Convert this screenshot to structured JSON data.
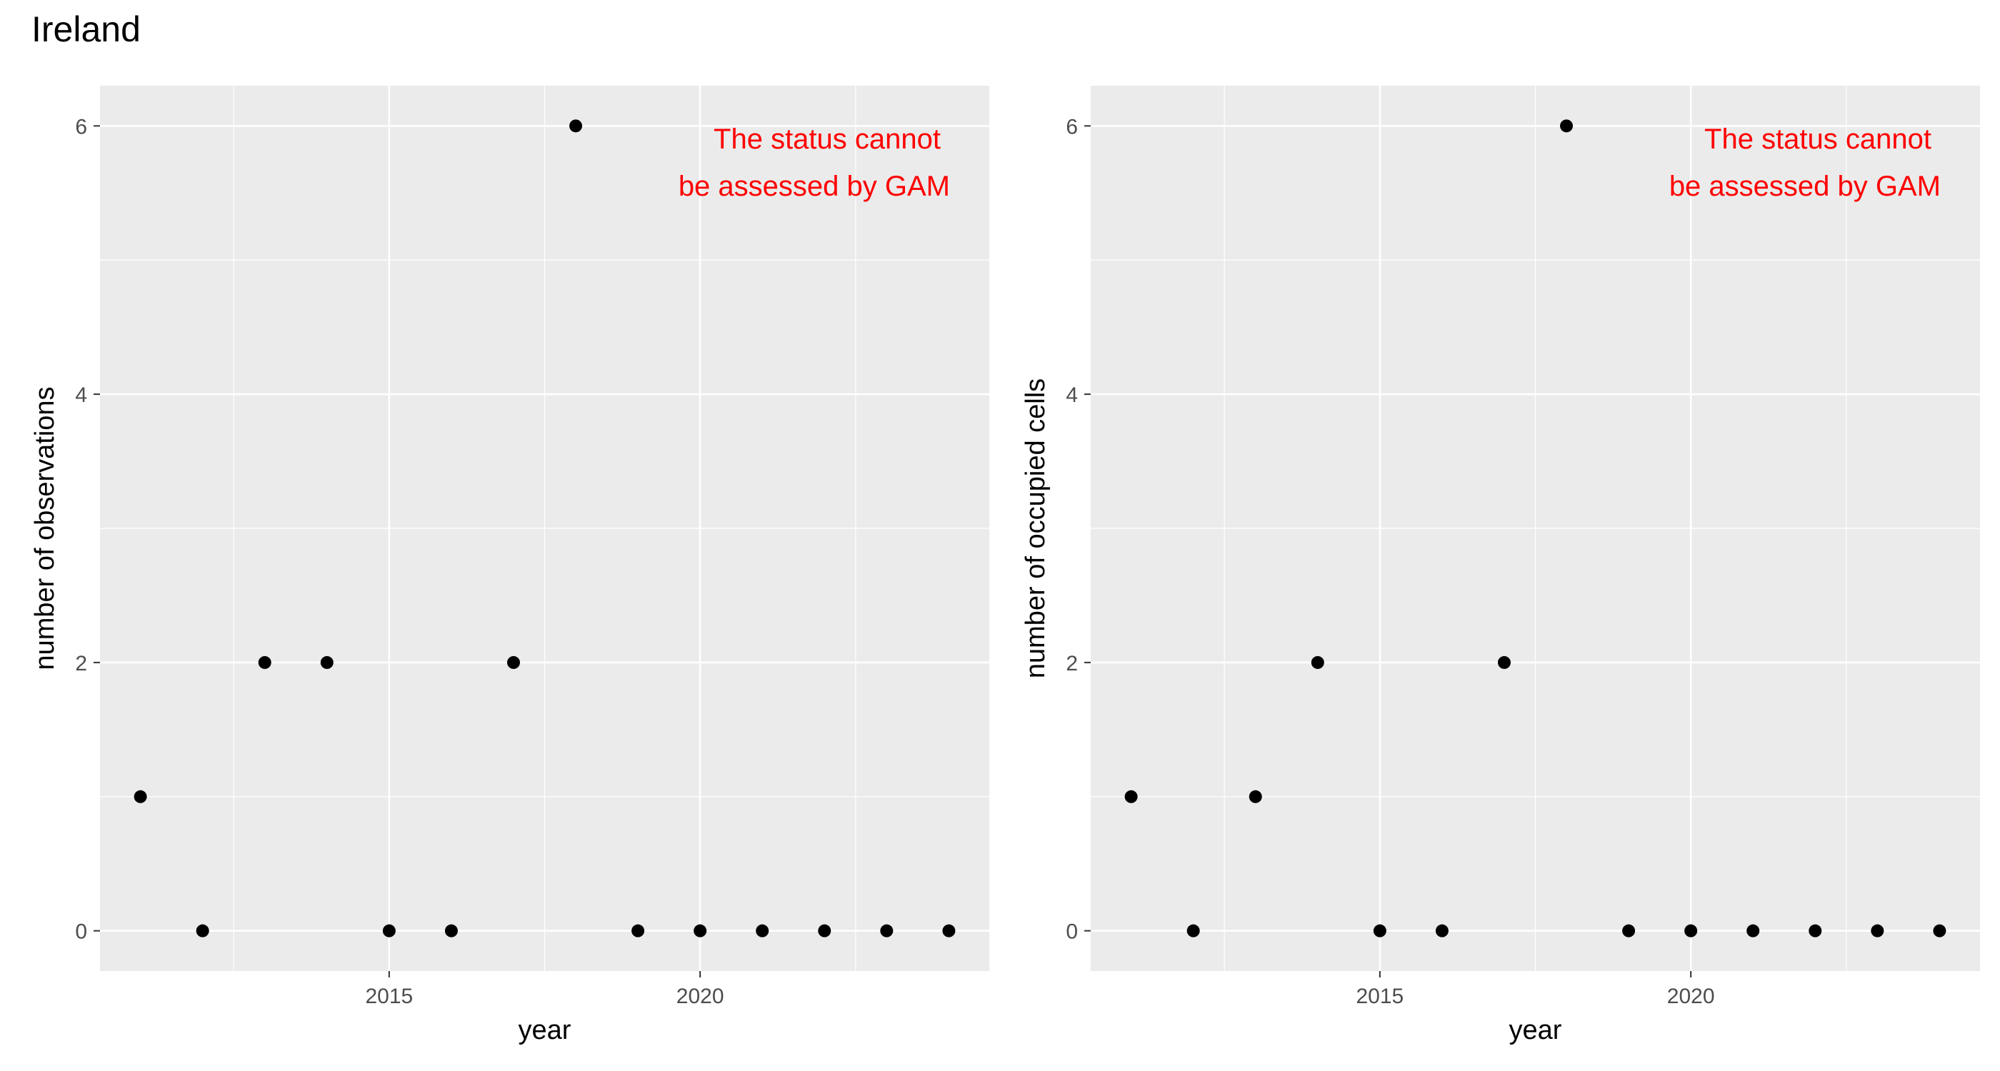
{
  "title": "Ireland",
  "colors": {
    "panel": "#ebebeb",
    "grid": "#ffffff",
    "point": "#000000",
    "annotation": "#ff0000",
    "tick": "#4d4d4d"
  },
  "chart_data": [
    {
      "type": "scatter",
      "xlabel": "year",
      "ylabel": "number of observations",
      "annotation": [
        "The status cannot",
        "be assessed by GAM"
      ],
      "x": [
        2011,
        2012,
        2013,
        2014,
        2015,
        2016,
        2017,
        2018,
        2019,
        2020,
        2021,
        2022,
        2023,
        2024
      ],
      "y": [
        1,
        0,
        2,
        2,
        0,
        0,
        2,
        6,
        0,
        0,
        0,
        0,
        0,
        0
      ],
      "xlim": [
        2010.35,
        2024.65
      ],
      "ylim": [
        -0.3,
        6.3
      ],
      "xticks": [
        2015,
        2020
      ],
      "xticks_minor": [
        2012.5,
        2017.5,
        2022.5
      ],
      "yticks": [
        0,
        2,
        4,
        6
      ],
      "yticks_minor": [
        1,
        3,
        5
      ],
      "grid": true
    },
    {
      "type": "scatter",
      "xlabel": "year",
      "ylabel": "number of occupied cells",
      "annotation": [
        "The status cannot",
        "be assessed by GAM"
      ],
      "x": [
        2011,
        2012,
        2013,
        2014,
        2015,
        2016,
        2017,
        2018,
        2019,
        2020,
        2021,
        2022,
        2023,
        2024
      ],
      "y": [
        1,
        0,
        1,
        2,
        0,
        0,
        2,
        6,
        0,
        0,
        0,
        0,
        0,
        0
      ],
      "xlim": [
        2010.35,
        2024.65
      ],
      "ylim": [
        -0.3,
        6.3
      ],
      "xticks": [
        2015,
        2020
      ],
      "xticks_minor": [
        2012.5,
        2017.5,
        2022.5
      ],
      "yticks": [
        0,
        2,
        4,
        6
      ],
      "yticks_minor": [
        1,
        3,
        5
      ],
      "grid": true
    }
  ]
}
